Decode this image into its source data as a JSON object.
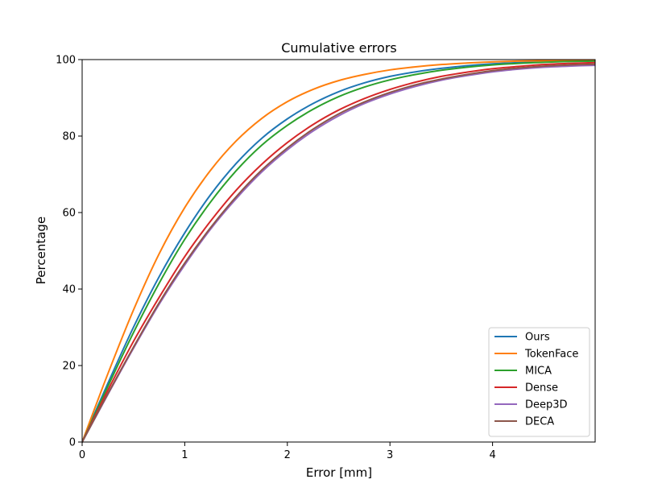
{
  "chart_data": {
    "type": "line",
    "title": "Cumulative errors",
    "xlabel": "Error [mm]",
    "ylabel": "Percentage",
    "xlim": [
      0,
      5
    ],
    "ylim": [
      0,
      100
    ],
    "xticks": [
      "0",
      "1",
      "2",
      "3",
      "4"
    ],
    "yticks": [
      "0",
      "20",
      "40",
      "60",
      "80",
      "100"
    ],
    "grid": false,
    "legend_position": "lower-right",
    "x": [
      0,
      0.25,
      0.5,
      0.75,
      1.0,
      1.25,
      1.5,
      1.75,
      2.0,
      2.25,
      2.5,
      2.75,
      3.0,
      3.25,
      3.5,
      3.75,
      4.0,
      4.25,
      4.5,
      4.75,
      5.0
    ],
    "series": [
      {
        "name": "Ours",
        "color": "#1f77b4",
        "values": [
          0,
          15.3,
          30.0,
          43.2,
          54.7,
          64.6,
          72.8,
          79.4,
          84.5,
          88.5,
          91.6,
          93.9,
          95.6,
          96.8,
          97.7,
          98.4,
          98.9,
          99.2,
          99.4,
          99.6,
          99.7
        ]
      },
      {
        "name": "TokenFace",
        "color": "#ff7f0e",
        "values": [
          0,
          17.8,
          34.5,
          49.2,
          61.3,
          71.0,
          78.7,
          84.6,
          89.0,
          92.2,
          94.5,
          96.1,
          97.3,
          98.1,
          98.7,
          99.1,
          99.4,
          99.6,
          99.7,
          99.8,
          99.9
        ]
      },
      {
        "name": "MICA",
        "color": "#2ca02c",
        "values": [
          0,
          14.5,
          28.6,
          41.5,
          53.0,
          62.7,
          70.9,
          77.6,
          82.8,
          87.0,
          90.3,
          92.8,
          94.7,
          96.1,
          97.2,
          98.0,
          98.6,
          99.0,
          99.3,
          99.5,
          99.6
        ]
      },
      {
        "name": "Dense",
        "color": "#d62728",
        "values": [
          0,
          13.5,
          26.3,
          37.8,
          48.5,
          57.7,
          65.8,
          72.6,
          78.3,
          83.0,
          86.8,
          89.8,
          92.2,
          94.1,
          95.6,
          96.7,
          97.6,
          98.2,
          98.7,
          99.0,
          99.2
        ]
      },
      {
        "name": "Deep3D",
        "color": "#9467bd",
        "values": [
          0,
          12.4,
          24.5,
          36.0,
          46.3,
          55.6,
          63.6,
          70.6,
          76.4,
          81.3,
          85.3,
          88.5,
          91.0,
          93.0,
          94.6,
          95.8,
          96.8,
          97.5,
          98.0,
          98.3,
          98.5
        ]
      },
      {
        "name": "DECA",
        "color": "#8c564b",
        "values": [
          0,
          12.6,
          24.8,
          36.4,
          46.8,
          56.0,
          64.1,
          71.1,
          76.9,
          81.8,
          85.8,
          88.9,
          91.4,
          93.4,
          94.9,
          96.1,
          97.1,
          97.8,
          98.3,
          98.6,
          98.8
        ]
      }
    ]
  }
}
